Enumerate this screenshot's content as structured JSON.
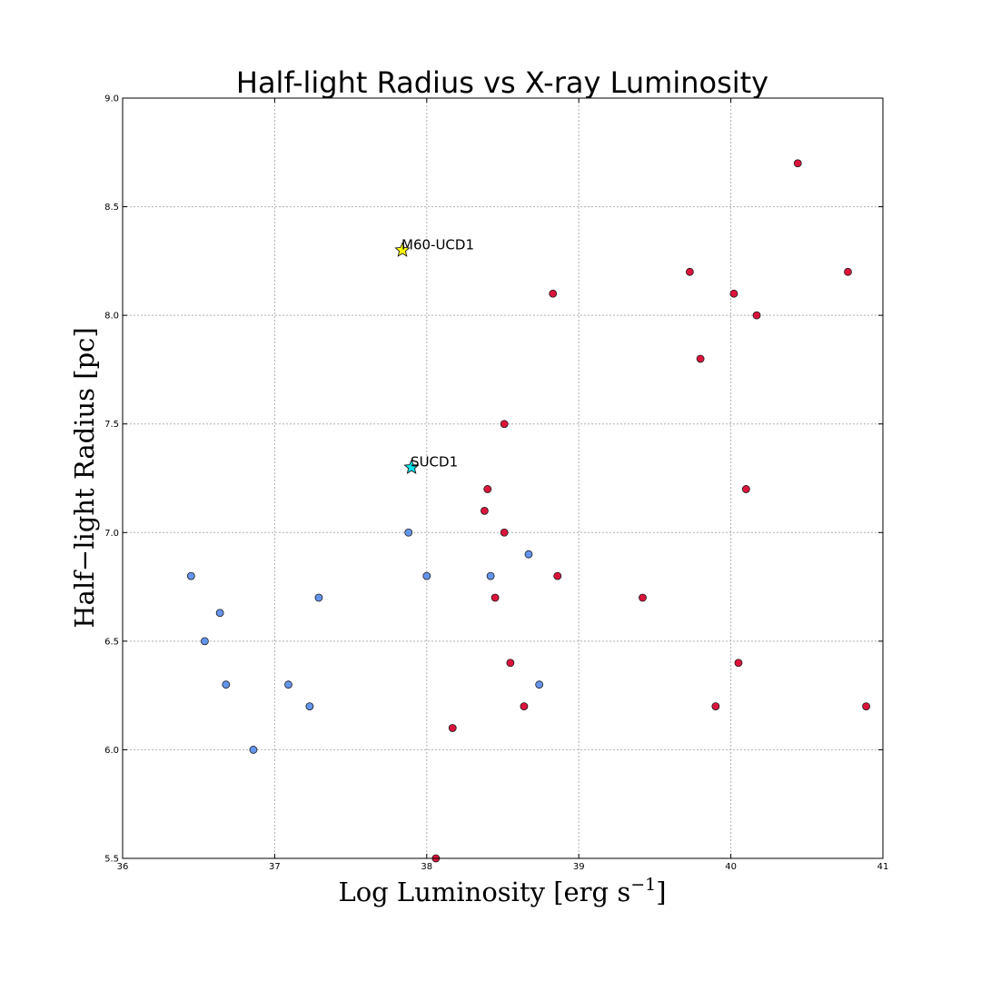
{
  "chart_data": {
    "type": "scatter",
    "title": "Half-light Radius vs X-ray Luminosity",
    "xlabel": "Log Luminosity [erg s",
    "xlabel_sup": "−1",
    "xlabel_close": "]",
    "ylabel": "Half−light Radius [pc]",
    "xlim": [
      36,
      41
    ],
    "ylim": [
      5.5,
      9.0
    ],
    "x_ticks": [
      36,
      37,
      38,
      39,
      40,
      41
    ],
    "x_tick_labels": [
      "36",
      "37",
      "38",
      "39",
      "40",
      "41"
    ],
    "y_ticks": [
      5.5,
      6.0,
      6.5,
      7.0,
      7.5,
      8.0,
      8.5,
      9.0
    ],
    "y_tick_labels": [
      "5.5",
      "6.0",
      "6.5",
      "7.0",
      "7.5",
      "8.0",
      "8.5",
      "9.0"
    ],
    "grid": true,
    "series": [
      {
        "color": "#6495ed",
        "marker": "circle",
        "points": [
          {
            "x": 36.45,
            "y": 6.8
          },
          {
            "x": 36.54,
            "y": 6.5
          },
          {
            "x": 36.64,
            "y": 6.63
          },
          {
            "x": 36.68,
            "y": 6.3
          },
          {
            "x": 36.86,
            "y": 6.0
          },
          {
            "x": 37.09,
            "y": 6.3
          },
          {
            "x": 37.23,
            "y": 6.2
          },
          {
            "x": 37.29,
            "y": 6.7
          },
          {
            "x": 37.88,
            "y": 7.0
          },
          {
            "x": 38.0,
            "y": 6.8
          },
          {
            "x": 38.42,
            "y": 6.8
          },
          {
            "x": 38.67,
            "y": 6.9
          },
          {
            "x": 38.74,
            "y": 6.3
          }
        ]
      },
      {
        "color": "#dc143c",
        "marker": "circle",
        "points": [
          {
            "x": 38.06,
            "y": 5.5
          },
          {
            "x": 38.17,
            "y": 6.1
          },
          {
            "x": 38.38,
            "y": 7.1
          },
          {
            "x": 38.4,
            "y": 7.2
          },
          {
            "x": 38.45,
            "y": 6.7
          },
          {
            "x": 38.51,
            "y": 7.0
          },
          {
            "x": 38.51,
            "y": 7.5
          },
          {
            "x": 38.55,
            "y": 6.4
          },
          {
            "x": 38.64,
            "y": 6.2
          },
          {
            "x": 38.83,
            "y": 8.1
          },
          {
            "x": 38.86,
            "y": 6.8
          },
          {
            "x": 39.42,
            "y": 6.7
          },
          {
            "x": 39.73,
            "y": 8.2
          },
          {
            "x": 39.8,
            "y": 7.8
          },
          {
            "x": 39.9,
            "y": 6.2
          },
          {
            "x": 40.02,
            "y": 8.1
          },
          {
            "x": 40.05,
            "y": 6.4
          },
          {
            "x": 40.1,
            "y": 7.2
          },
          {
            "x": 40.17,
            "y": 8.0
          },
          {
            "x": 40.44,
            "y": 8.7
          },
          {
            "x": 40.77,
            "y": 8.2
          },
          {
            "x": 40.89,
            "y": 6.2
          }
        ]
      }
    ],
    "annotations": [
      {
        "label": "M60-UCD1",
        "x": 37.84,
        "y": 8.3,
        "color": "#ffff00",
        "marker": "star"
      },
      {
        "label": "SUCD1",
        "x": 37.9,
        "y": 7.3,
        "color": "#00e5ee",
        "marker": "star"
      }
    ]
  }
}
